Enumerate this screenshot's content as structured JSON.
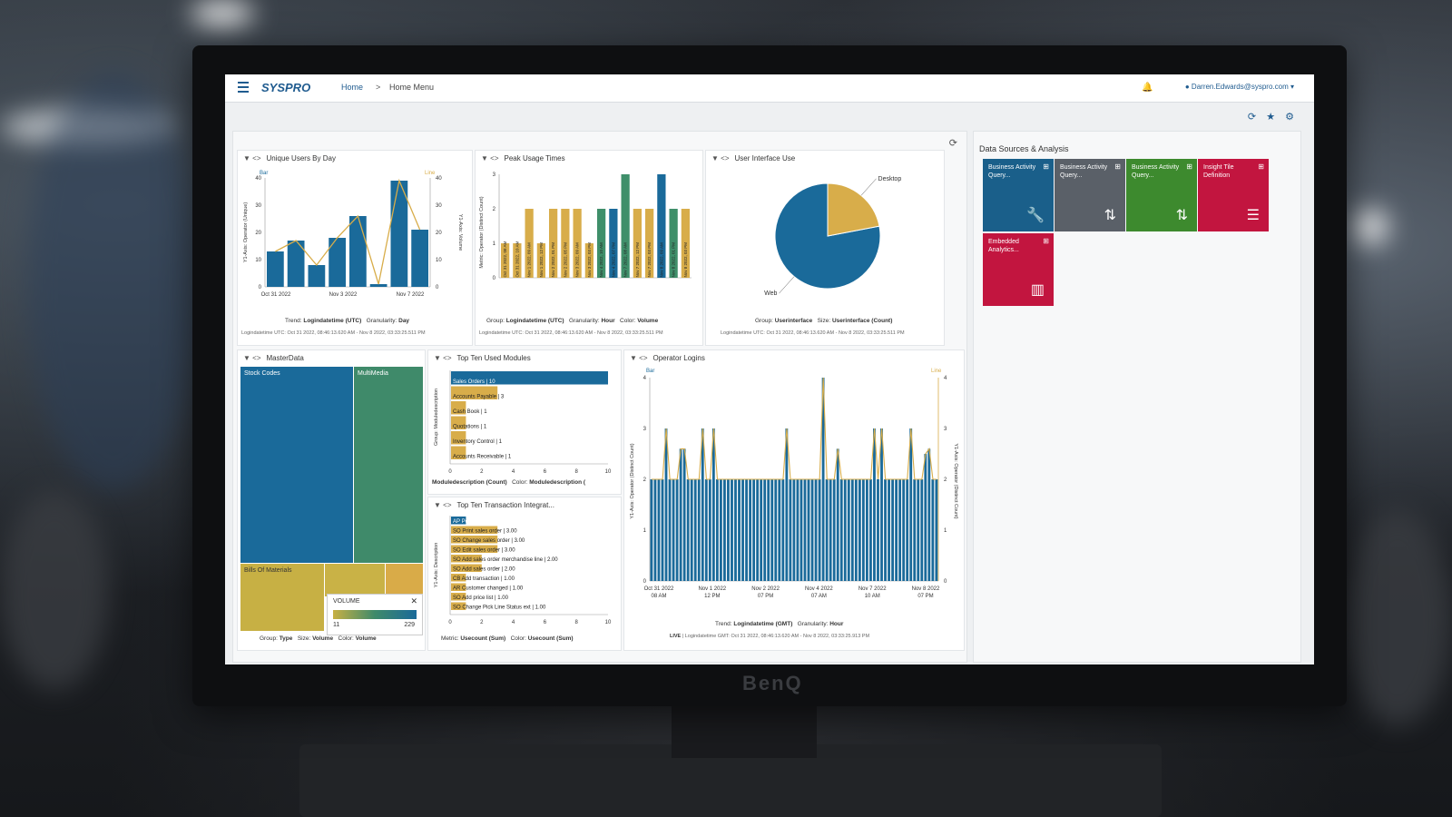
{
  "app": {
    "brand": "SYSPRO",
    "monitor_brand": "BenQ"
  },
  "breadcrumb": {
    "home": "Home",
    "separator": ">",
    "current": "Home Menu"
  },
  "user": {
    "email": "Darren.Edwards@syspro.com"
  },
  "colors": {
    "blue": "#1a6a9a",
    "gold": "#d8ad4a",
    "green": "#3f8f6a",
    "crimson": "#c2153f",
    "gray": "#5a6068",
    "darkgreen": "#3d8a2e"
  },
  "cards": {
    "unique_users": {
      "title": "Unique Users By Day",
      "left_axis_label": "Bar",
      "right_axis_label": "Line",
      "y_title_left": "Y1-Axis: Operator (Unique)",
      "y_title_right": "Y1-Axis: Volume",
      "caption_prefix": "Trend:",
      "caption_trend": "Logindatetime (UTC)",
      "caption_gran_prefix": "Granularity:",
      "caption_gran": "Day",
      "note": "Logindatetime UTC: Oct 31 2022, 08:46:13.620 AM - Nov 8 2022, 03:33:25.511 PM"
    },
    "peak_usage": {
      "title": "Peak Usage Times",
      "y_title": "Metric: Operator (Distinct Count)",
      "caption_group_prefix": "Group:",
      "caption_group": "Logindatetime (UTC)",
      "caption_gran_prefix": "Granularity:",
      "caption_gran": "Hour",
      "caption_color_prefix": "Color:",
      "caption_color": "Volume",
      "note": "Logindatetime UTC: Oct 31 2022, 08:46:13.620 AM - Nov 8 2022, 03:33:25.511 PM"
    },
    "ui_use": {
      "title": "User Interface Use",
      "caption_group_prefix": "Group:",
      "caption_group": "Userinterface",
      "caption_size_prefix": "Size:",
      "caption_size": "Userinterface (Count)",
      "note": "Logindatetime UTC: Oct 31 2022, 08:46:13.620 AM - Nov 8 2022, 03:33:25.511 PM"
    },
    "masterdata": {
      "title": "MasterData",
      "legend_title": "VOLUME",
      "legend_min": "11",
      "legend_max": "229",
      "legend_close": "✕",
      "caption_group_prefix": "Group:",
      "caption_group": "Type",
      "caption_size_prefix": "Size:",
      "caption_size": "Volume",
      "caption_color_prefix": "Color:",
      "caption_color": "Volume"
    },
    "top_modules": {
      "title": "Top Ten Used Modules",
      "y_title": "Group: Moduledescription",
      "caption_metric": "Moduledescription (Count)",
      "caption_color_prefix": "Color:",
      "caption_color": "Moduledescription ("
    },
    "top_transactions": {
      "title": "Top Ten Transaction Integrat...",
      "y_title": "Y1-Axis: Description",
      "caption_metric_prefix": "Metric:",
      "caption_metric": "Usecount (Sum)",
      "caption_color_prefix": "Color:",
      "caption_color": "Usecount (Sum)"
    },
    "operator_logins": {
      "title": "Operator Logins",
      "left_axis_label": "Bar",
      "right_axis_label": "Line",
      "y_title_left": "Y1-Axis: Operator (Distinct Count)",
      "y_title_right": "Y1-Axis: Operator (Distinct Count)",
      "caption_prefix": "Trend:",
      "caption_trend": "Logindatetime (GMT)",
      "caption_gran_prefix": "Granularity:",
      "caption_gran": "Hour",
      "live": "LIVE",
      "note": "| Logindatetime GMT: Oct 31 2022, 08:46:13.620 AM - Nov 8 2022, 03:33:25.913 PM"
    }
  },
  "data_sources": {
    "title": "Data Sources & Analysis",
    "tiles": [
      {
        "label": "Business Activity Query...",
        "color": "#1a5f8a",
        "icon": "wrench-icon"
      },
      {
        "label": "Business Activity Query...",
        "color": "#5a6068",
        "icon": "sort-icon"
      },
      {
        "label": "Business Activity Query...",
        "color": "#3d8a2e",
        "icon": "sort-icon"
      },
      {
        "label": "Insight Tile Definition",
        "color": "#c2153f",
        "icon": "sliders-icon"
      },
      {
        "label": "Embedded Analytics...",
        "color": "#c2153f",
        "icon": "bar-chart-icon"
      }
    ]
  },
  "chart_data": [
    {
      "type": "bar",
      "title": "Unique Users By Day",
      "xlabel": "Trend: Logindatetime (UTC)",
      "ylabel": "Operator (Unique)",
      "x_ticks": [
        "Oct 31 2022",
        "Nov 3 2022",
        "Nov 7 2022"
      ],
      "y_ticks": [
        0,
        10,
        20,
        30,
        40
      ],
      "ylim": [
        0,
        40
      ],
      "series": [
        {
          "name": "Bar",
          "type": "bar",
          "values": [
            13,
            17,
            8,
            18,
            26,
            1,
            39,
            21
          ]
        },
        {
          "name": "Line",
          "type": "line",
          "values": [
            13,
            17,
            8,
            18,
            26,
            1,
            39,
            21
          ]
        }
      ]
    },
    {
      "type": "bar",
      "title": "Peak Usage Times",
      "ylabel": "Operator (Distinct Count)",
      "y_ticks": [
        0,
        1,
        2,
        3
      ],
      "ylim": [
        0,
        3
      ],
      "categories": [
        "Oct 31 2022, 08 AM",
        "Oct 31 2022, 10 AM",
        "Nov 1 2022, 09 AM",
        "Nov 1 2022, 12 PM",
        "Nov 2 2022, 01 PM",
        "Nov 2 2022, 05 PM",
        "Nov 3 2022, 09 AM",
        "Nov 3 2022, 03 PM",
        "Nov 4 2022, 10 AM",
        "Nov 4 2022, 07 PM",
        "Nov 7 2022, 08 AM",
        "Nov 7 2022, 12 PM",
        "Nov 7 2022, 03 PM",
        "Nov 8 2022, 09 AM",
        "Nov 8 2022, 01 PM",
        "Nov 8 2022, 03 PM"
      ],
      "values": [
        1,
        1,
        2,
        1,
        2,
        2,
        2,
        1,
        2,
        2,
        3,
        2,
        2,
        3,
        2,
        2
      ],
      "colors": [
        "gold",
        "gold",
        "gold",
        "gold",
        "gold",
        "gold",
        "gold",
        "gold",
        "green",
        "blue",
        "green",
        "gold",
        "gold",
        "blue",
        "green",
        "gold"
      ]
    },
    {
      "type": "pie",
      "title": "User Interface Use",
      "slices": [
        {
          "label": "Web",
          "value": 78
        },
        {
          "label": "Desktop",
          "value": 22
        }
      ]
    },
    {
      "type": "bar",
      "title": "Top Ten Used Modules",
      "orientation": "horizontal",
      "x_ticks": [
        0,
        2,
        4,
        6,
        8,
        10
      ],
      "xlim": [
        0,
        10
      ],
      "categories": [
        "Sales Orders | 10",
        "Accounts Payable | 3",
        "Cash Book | 1",
        "Quotations | 1",
        "Inventory Control | 1",
        "Accounts Receivable | 1"
      ],
      "values": [
        10,
        3,
        1,
        1,
        1,
        1
      ]
    },
    {
      "type": "bar",
      "title": "Top Ten Transaction Integrat...",
      "orientation": "horizontal",
      "x_ticks": [
        0,
        2,
        4,
        6,
        8,
        10
      ],
      "xlim": [
        0,
        10
      ],
      "categories": [
        "AP Post invoice | 1.00",
        "SO Print sales order | 3.00",
        "SO Change sales order | 3.00",
        "SO Edit sales order | 3.00",
        "SO Add sales order merchandise line | 2.00",
        "SO Add sales order | 2.00",
        "CB Add transaction | 1.00",
        "AR Customer changed | 1.00",
        "SO Add price list | 1.00",
        "SO Change Pick Line Status ext | 1.00"
      ],
      "values": [
        1,
        3,
        3,
        3,
        2,
        2,
        1,
        1,
        1,
        1
      ]
    },
    {
      "type": "bar",
      "title": "Operator Logins",
      "xlabel": "Trend: Logindatetime (GMT)",
      "y_ticks": [
        0,
        1,
        2,
        3,
        4
      ],
      "ylim": [
        0,
        4
      ],
      "x_ticks": [
        "Oct 31 2022 08 AM",
        "Nov 1 2022 12 PM",
        "Nov 2 2022 07 PM",
        "Nov 4 2022 07 AM",
        "Nov 7 2022 10 AM",
        "Nov 8 2022 07 PM"
      ],
      "values": [
        2,
        2,
        2,
        2,
        3,
        2,
        2,
        2,
        2.6,
        2.6,
        2,
        2,
        2,
        2,
        3,
        2,
        2,
        3,
        2,
        2,
        2,
        2,
        2,
        2,
        2,
        2,
        2,
        2,
        2,
        2,
        2,
        2,
        2,
        2,
        2,
        2,
        2,
        3,
        2,
        2,
        2,
        2,
        2,
        2,
        2,
        2,
        2,
        4,
        2,
        2,
        2,
        2.6,
        2,
        2,
        2,
        2,
        2,
        2,
        2,
        2,
        2,
        3,
        2,
        3,
        2,
        2,
        2,
        2,
        2,
        2,
        2,
        3,
        2,
        2,
        2,
        2.5,
        2.6,
        2,
        2
      ],
      "series": [
        {
          "name": "Bar"
        },
        {
          "name": "Line"
        }
      ]
    }
  ]
}
